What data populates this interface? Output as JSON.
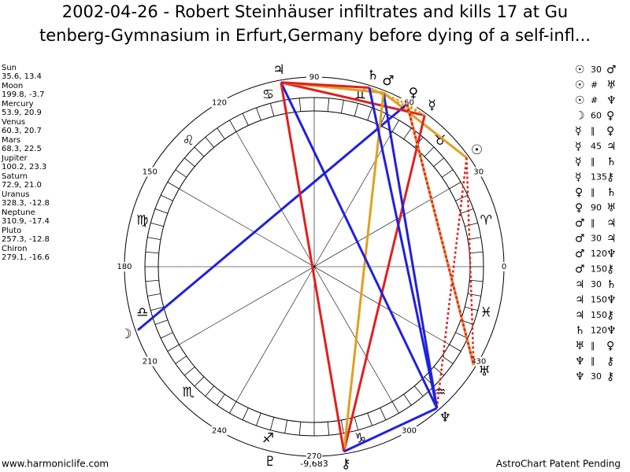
{
  "header": {
    "line1": "2002-04-26 - Robert Steinhäuser infiltrates and kills 17 at Gu",
    "line2": "tenberg-Gymnasium in Erfurt,Germany before dying of a self-infl..."
  },
  "planets": [
    {
      "name": "Sun",
      "glyph": "☉",
      "position": "35.6, 13.4"
    },
    {
      "name": "Moon",
      "glyph": "☽",
      "position": "199.8, -3.7"
    },
    {
      "name": "Mercury",
      "glyph": "☿",
      "position": "53.9, 20.9"
    },
    {
      "name": "Venus",
      "glyph": "♀",
      "position": "60.3, 20.7"
    },
    {
      "name": "Mars",
      "glyph": "♂",
      "position": "68.3, 22.5"
    },
    {
      "name": "Jupiter",
      "glyph": "♃",
      "position": "100.2, 23.3"
    },
    {
      "name": "Saturn",
      "glyph": "♄",
      "position": "72.9, 21.0"
    },
    {
      "name": "Uranus",
      "glyph": "♅",
      "position": "328.3, -12.8"
    },
    {
      "name": "Neptune",
      "glyph": "♆",
      "position": "310.9, -17.4"
    },
    {
      "name": "Pluto",
      "glyph": "♇",
      "position": "257.3, -12.8"
    },
    {
      "name": "Chiron",
      "glyph": "⚷",
      "position": "279.1, -16.6"
    }
  ],
  "zodiac": [
    "♈",
    "♉",
    "♊",
    "♋",
    "♌",
    "♍",
    "♎",
    "♏",
    "♐",
    "♑",
    "♒",
    "♓"
  ],
  "degree_labels": [
    0,
    30,
    60,
    90,
    120,
    150,
    180,
    210,
    240,
    270,
    300,
    330
  ],
  "aspects": [
    {
      "a": "☉",
      "kind": "30",
      "b": "♂",
      "color": "#e0a020",
      "style": "solid"
    },
    {
      "a": "☉",
      "kind": "#",
      "b": "♅",
      "color": "#e02020",
      "style": "dotted"
    },
    {
      "a": "☉",
      "kind": "#",
      "b": "♆",
      "color": "#e02020",
      "style": "dotted"
    },
    {
      "a": "☽",
      "kind": "60",
      "b": "♀",
      "color": "#2020e0",
      "style": "solid"
    },
    {
      "a": "☿",
      "kind": "∥",
      "b": "♀",
      "color": "#e0a020",
      "style": "dotted"
    },
    {
      "a": "☿",
      "kind": "45",
      "b": "♃",
      "color": "#e02020",
      "style": "solid"
    },
    {
      "a": "☿",
      "kind": "∥",
      "b": "♄",
      "color": "#e0a020",
      "style": "dotted"
    },
    {
      "a": "☿",
      "kind": "135",
      "b": "⚷",
      "color": "#e02020",
      "style": "solid"
    },
    {
      "a": "♀",
      "kind": "∥",
      "b": "♄",
      "color": "#e0a020",
      "style": "dotted"
    },
    {
      "a": "♀",
      "kind": "90",
      "b": "♅",
      "color": "#e02020",
      "style": "solid"
    },
    {
      "a": "♂",
      "kind": "∥",
      "b": "♃",
      "color": "#e02020",
      "style": "dotted"
    },
    {
      "a": "♂",
      "kind": "30",
      "b": "♃",
      "color": "#e0a020",
      "style": "solid"
    },
    {
      "a": "♂",
      "kind": "120",
      "b": "♆",
      "color": "#2020e0",
      "style": "solid"
    },
    {
      "a": "♂",
      "kind": "150",
      "b": "⚷",
      "color": "#e0a020",
      "style": "solid"
    },
    {
      "a": "♃",
      "kind": "30",
      "b": "♄",
      "color": "#e02020",
      "style": "solid"
    },
    {
      "a": "♃",
      "kind": "150",
      "b": "♆",
      "color": "#2020e0",
      "style": "solid"
    },
    {
      "a": "♃",
      "kind": "150",
      "b": "⚷",
      "color": "#e02020",
      "style": "solid"
    },
    {
      "a": "♄",
      "kind": "120",
      "b": "♆",
      "color": "#2020e0",
      "style": "solid"
    },
    {
      "a": "♅",
      "kind": "∥",
      "b": "♀",
      "color": "#e0a020",
      "style": "dotted"
    },
    {
      "a": "♆",
      "kind": "∥",
      "b": "⚷",
      "color": "#e0a020",
      "style": "dotted"
    },
    {
      "a": "♆",
      "kind": "30",
      "b": "⚷",
      "color": "#2020e0",
      "style": "solid"
    }
  ],
  "ascendant_label": "-9,683",
  "footer": {
    "left": "www.harmoniclife.com",
    "right": "AstroChart Patent Pending"
  }
}
